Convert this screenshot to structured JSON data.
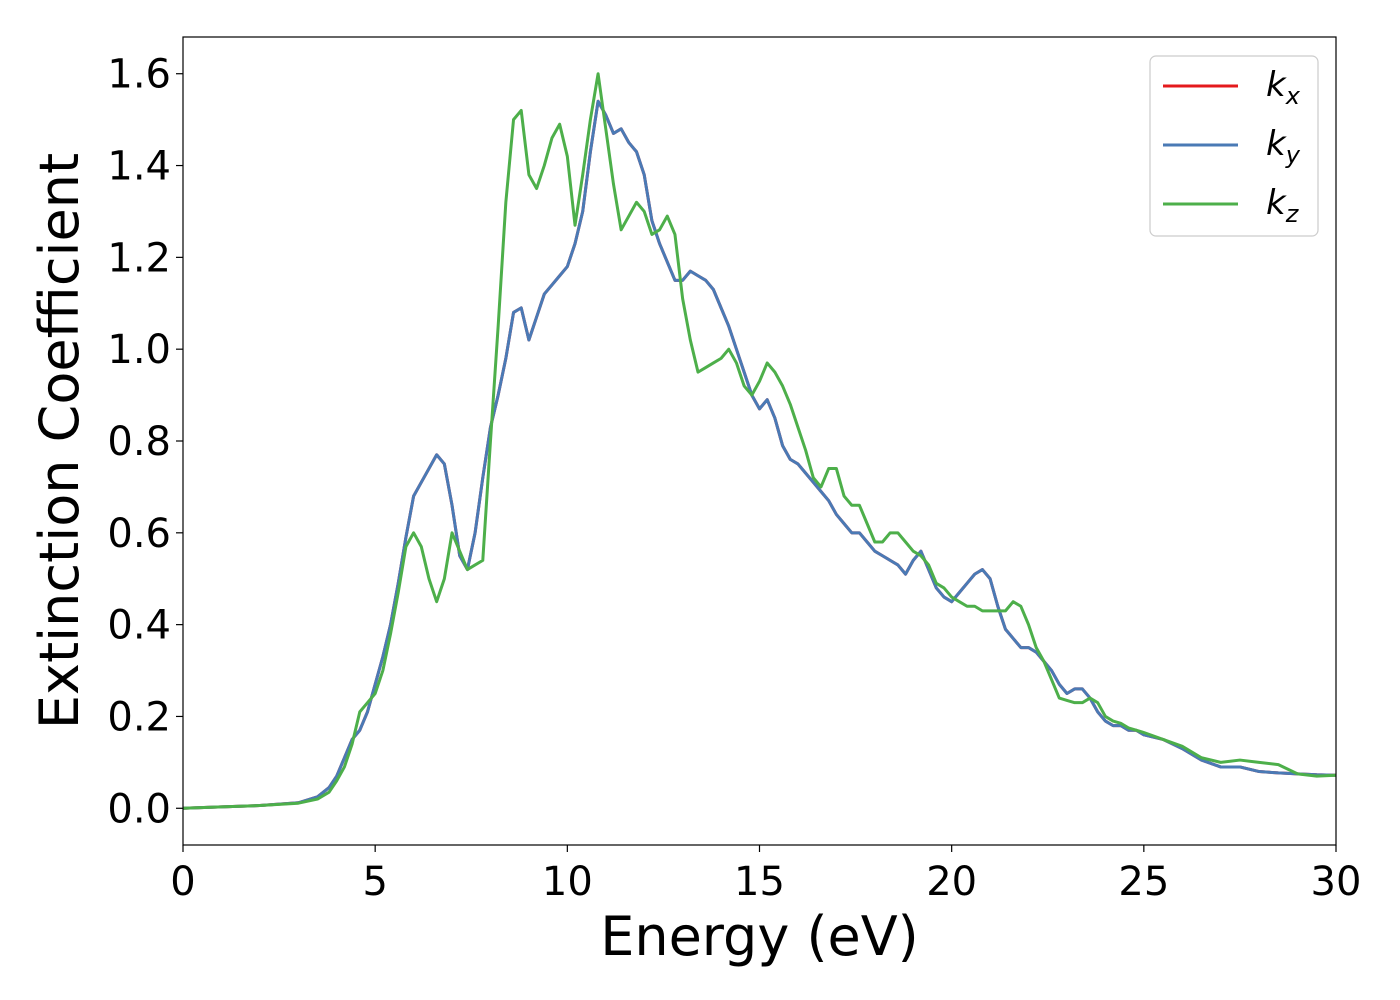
{
  "chart_data": {
    "type": "line",
    "xlabel": "Energy (eV)",
    "ylabel": "Extinction Coefficient",
    "xlim": [
      0,
      30
    ],
    "ylim": [
      -0.08,
      1.68
    ],
    "xticks": [
      0,
      5,
      10,
      15,
      20,
      25,
      30
    ],
    "xtick_labels": [
      "0",
      "5",
      "10",
      "15",
      "20",
      "25",
      "30"
    ],
    "yticks": [
      0.0,
      0.2,
      0.4,
      0.6,
      0.8,
      1.0,
      1.2,
      1.4,
      1.6
    ],
    "ytick_labels": [
      "0.0",
      "0.2",
      "0.4",
      "0.6",
      "0.8",
      "1.0",
      "1.2",
      "1.4",
      "1.6"
    ],
    "grid": false,
    "legend_position": "top-right",
    "series": [
      {
        "name": "kx",
        "label_main": "k",
        "label_sub": "x",
        "color": "#e41a1c",
        "x": [
          0,
          1,
          2,
          3,
          3.5,
          3.8,
          4,
          4.2,
          4.4,
          4.6,
          4.8,
          5,
          5.2,
          5.4,
          5.6,
          5.8,
          6,
          6.2,
          6.4,
          6.6,
          6.8,
          7,
          7.2,
          7.4,
          7.6,
          7.8,
          8,
          8.2,
          8.4,
          8.6,
          8.8,
          9,
          9.2,
          9.4,
          9.6,
          9.8,
          10,
          10.2,
          10.4,
          10.6,
          10.8,
          11,
          11.2,
          11.4,
          11.6,
          11.8,
          12,
          12.2,
          12.4,
          12.6,
          12.8,
          13,
          13.2,
          13.4,
          13.6,
          13.8,
          14,
          14.2,
          14.4,
          14.6,
          14.8,
          15,
          15.2,
          15.4,
          15.6,
          15.8,
          16,
          16.2,
          16.4,
          16.6,
          16.8,
          17,
          17.2,
          17.4,
          17.6,
          17.8,
          18,
          18.2,
          18.4,
          18.6,
          18.8,
          19,
          19.2,
          19.4,
          19.6,
          19.8,
          20,
          20.2,
          20.4,
          20.6,
          20.8,
          21,
          21.2,
          21.4,
          21.6,
          21.8,
          22,
          22.2,
          22.4,
          22.6,
          22.8,
          23,
          23.2,
          23.4,
          23.6,
          23.8,
          24,
          24.2,
          24.4,
          24.6,
          24.8,
          25,
          25.5,
          26,
          26.5,
          27,
          27.5,
          28,
          28.5,
          29,
          29.5,
          30
        ],
        "y": [
          0,
          0.003,
          0.006,
          0.012,
          0.025,
          0.045,
          0.07,
          0.11,
          0.15,
          0.17,
          0.21,
          0.27,
          0.33,
          0.4,
          0.49,
          0.59,
          0.68,
          0.71,
          0.74,
          0.77,
          0.75,
          0.66,
          0.55,
          0.52,
          0.6,
          0.72,
          0.83,
          0.9,
          0.98,
          1.08,
          1.09,
          1.02,
          1.07,
          1.12,
          1.14,
          1.16,
          1.18,
          1.23,
          1.3,
          1.43,
          1.54,
          1.51,
          1.47,
          1.48,
          1.45,
          1.43,
          1.38,
          1.28,
          1.23,
          1.19,
          1.15,
          1.15,
          1.17,
          1.16,
          1.15,
          1.13,
          1.09,
          1.05,
          1.0,
          0.95,
          0.9,
          0.87,
          0.89,
          0.85,
          0.79,
          0.76,
          0.75,
          0.73,
          0.71,
          0.69,
          0.67,
          0.64,
          0.62,
          0.6,
          0.6,
          0.58,
          0.56,
          0.55,
          0.54,
          0.53,
          0.51,
          0.54,
          0.56,
          0.52,
          0.48,
          0.46,
          0.45,
          0.47,
          0.49,
          0.51,
          0.52,
          0.5,
          0.44,
          0.39,
          0.37,
          0.35,
          0.35,
          0.34,
          0.32,
          0.3,
          0.27,
          0.25,
          0.26,
          0.26,
          0.24,
          0.21,
          0.19,
          0.18,
          0.18,
          0.17,
          0.17,
          0.16,
          0.15,
          0.13,
          0.105,
          0.09,
          0.09,
          0.08,
          0.077,
          0.075,
          0.073,
          0.072
        ]
      },
      {
        "name": "ky",
        "label_main": "k",
        "label_sub": "y",
        "color": "#4a7ab5",
        "x": [
          0,
          1,
          2,
          3,
          3.5,
          3.8,
          4,
          4.2,
          4.4,
          4.6,
          4.8,
          5,
          5.2,
          5.4,
          5.6,
          5.8,
          6,
          6.2,
          6.4,
          6.6,
          6.8,
          7,
          7.2,
          7.4,
          7.6,
          7.8,
          8,
          8.2,
          8.4,
          8.6,
          8.8,
          9,
          9.2,
          9.4,
          9.6,
          9.8,
          10,
          10.2,
          10.4,
          10.6,
          10.8,
          11,
          11.2,
          11.4,
          11.6,
          11.8,
          12,
          12.2,
          12.4,
          12.6,
          12.8,
          13,
          13.2,
          13.4,
          13.6,
          13.8,
          14,
          14.2,
          14.4,
          14.6,
          14.8,
          15,
          15.2,
          15.4,
          15.6,
          15.8,
          16,
          16.2,
          16.4,
          16.6,
          16.8,
          17,
          17.2,
          17.4,
          17.6,
          17.8,
          18,
          18.2,
          18.4,
          18.6,
          18.8,
          19,
          19.2,
          19.4,
          19.6,
          19.8,
          20,
          20.2,
          20.4,
          20.6,
          20.8,
          21,
          21.2,
          21.4,
          21.6,
          21.8,
          22,
          22.2,
          22.4,
          22.6,
          22.8,
          23,
          23.2,
          23.4,
          23.6,
          23.8,
          24,
          24.2,
          24.4,
          24.6,
          24.8,
          25,
          25.5,
          26,
          26.5,
          27,
          27.5,
          28,
          28.5,
          29,
          29.5,
          30
        ],
        "y": [
          0,
          0.003,
          0.006,
          0.012,
          0.025,
          0.045,
          0.07,
          0.11,
          0.15,
          0.17,
          0.21,
          0.27,
          0.33,
          0.4,
          0.49,
          0.59,
          0.68,
          0.71,
          0.74,
          0.77,
          0.75,
          0.66,
          0.55,
          0.52,
          0.6,
          0.72,
          0.83,
          0.9,
          0.98,
          1.08,
          1.09,
          1.02,
          1.07,
          1.12,
          1.14,
          1.16,
          1.18,
          1.23,
          1.3,
          1.43,
          1.54,
          1.51,
          1.47,
          1.48,
          1.45,
          1.43,
          1.38,
          1.28,
          1.23,
          1.19,
          1.15,
          1.15,
          1.17,
          1.16,
          1.15,
          1.13,
          1.09,
          1.05,
          1.0,
          0.95,
          0.9,
          0.87,
          0.89,
          0.85,
          0.79,
          0.76,
          0.75,
          0.73,
          0.71,
          0.69,
          0.67,
          0.64,
          0.62,
          0.6,
          0.6,
          0.58,
          0.56,
          0.55,
          0.54,
          0.53,
          0.51,
          0.54,
          0.56,
          0.52,
          0.48,
          0.46,
          0.45,
          0.47,
          0.49,
          0.51,
          0.52,
          0.5,
          0.44,
          0.39,
          0.37,
          0.35,
          0.35,
          0.34,
          0.32,
          0.3,
          0.27,
          0.25,
          0.26,
          0.26,
          0.24,
          0.21,
          0.19,
          0.18,
          0.18,
          0.17,
          0.17,
          0.16,
          0.15,
          0.13,
          0.105,
          0.09,
          0.09,
          0.08,
          0.077,
          0.075,
          0.073,
          0.072
        ]
      },
      {
        "name": "kz",
        "label_main": "k",
        "label_sub": "z",
        "color": "#4daf4a",
        "x": [
          0,
          1,
          2,
          3,
          3.5,
          3.8,
          4,
          4.2,
          4.4,
          4.6,
          4.8,
          5,
          5.2,
          5.4,
          5.6,
          5.8,
          6,
          6.2,
          6.4,
          6.6,
          6.8,
          7,
          7.2,
          7.4,
          7.6,
          7.8,
          8,
          8.2,
          8.4,
          8.6,
          8.8,
          9,
          9.2,
          9.4,
          9.6,
          9.8,
          10,
          10.2,
          10.4,
          10.6,
          10.8,
          11,
          11.2,
          11.4,
          11.6,
          11.8,
          12,
          12.2,
          12.4,
          12.6,
          12.8,
          13,
          13.2,
          13.4,
          13.6,
          13.8,
          14,
          14.2,
          14.4,
          14.6,
          14.8,
          15,
          15.2,
          15.4,
          15.6,
          15.8,
          16,
          16.2,
          16.4,
          16.6,
          16.8,
          17,
          17.2,
          17.4,
          17.6,
          17.8,
          18,
          18.2,
          18.4,
          18.6,
          18.8,
          19,
          19.2,
          19.4,
          19.6,
          19.8,
          20,
          20.2,
          20.4,
          20.6,
          20.8,
          21,
          21.2,
          21.4,
          21.6,
          21.8,
          22,
          22.2,
          22.4,
          22.6,
          22.8,
          23,
          23.2,
          23.4,
          23.6,
          23.8,
          24,
          24.2,
          24.4,
          24.6,
          24.8,
          25,
          25.5,
          26,
          26.5,
          27,
          27.5,
          28,
          28.5,
          29,
          29.5,
          30
        ],
        "y": [
          0,
          0.003,
          0.006,
          0.011,
          0.02,
          0.035,
          0.06,
          0.09,
          0.14,
          0.21,
          0.23,
          0.25,
          0.3,
          0.38,
          0.47,
          0.57,
          0.6,
          0.57,
          0.5,
          0.45,
          0.5,
          0.6,
          0.56,
          0.52,
          0.53,
          0.54,
          0.8,
          1.05,
          1.32,
          1.5,
          1.52,
          1.38,
          1.35,
          1.4,
          1.46,
          1.49,
          1.42,
          1.27,
          1.38,
          1.5,
          1.6,
          1.48,
          1.36,
          1.26,
          1.29,
          1.32,
          1.3,
          1.25,
          1.26,
          1.29,
          1.25,
          1.11,
          1.02,
          0.95,
          0.96,
          0.97,
          0.98,
          1.0,
          0.97,
          0.92,
          0.9,
          0.93,
          0.97,
          0.95,
          0.92,
          0.88,
          0.83,
          0.78,
          0.72,
          0.7,
          0.74,
          0.74,
          0.68,
          0.66,
          0.66,
          0.62,
          0.58,
          0.58,
          0.6,
          0.6,
          0.58,
          0.56,
          0.55,
          0.53,
          0.49,
          0.48,
          0.46,
          0.45,
          0.44,
          0.44,
          0.43,
          0.43,
          0.43,
          0.43,
          0.45,
          0.44,
          0.4,
          0.35,
          0.32,
          0.28,
          0.24,
          0.235,
          0.23,
          0.23,
          0.24,
          0.23,
          0.2,
          0.19,
          0.185,
          0.175,
          0.17,
          0.165,
          0.15,
          0.135,
          0.11,
          0.1,
          0.105,
          0.1,
          0.095,
          0.075,
          0.07,
          0.072
        ]
      }
    ]
  }
}
